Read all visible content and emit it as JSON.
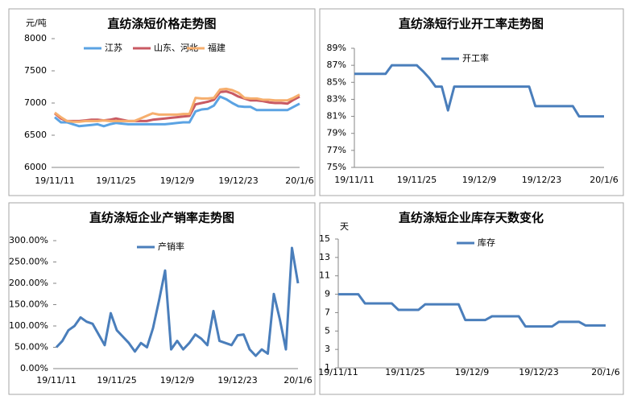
{
  "chart_data": [
    {
      "type": "line",
      "title": "直纺涤短价格走势图",
      "y_label": "元/吨",
      "categories": [
        "19/11/11",
        null,
        null,
        null,
        null,
        null,
        null,
        null,
        null,
        null,
        "19/11/25",
        null,
        null,
        null,
        null,
        null,
        null,
        null,
        null,
        null,
        "19/12/9",
        null,
        null,
        null,
        null,
        null,
        null,
        null,
        null,
        null,
        "19/12/23",
        null,
        null,
        null,
        null,
        null,
        null,
        null,
        null,
        null,
        "20/1/6"
      ],
      "ylim": [
        6000,
        8000
      ],
      "yticks": [
        6000,
        6500,
        7000,
        7500,
        8000
      ],
      "grid": false,
      "series": [
        {
          "name": "江苏",
          "color": "#5ba3e3",
          "values": [
            6780,
            6700,
            6700,
            6670,
            6640,
            6650,
            6660,
            6670,
            6640,
            6670,
            6690,
            6680,
            6670,
            6670,
            6670,
            6670,
            6670,
            6670,
            6670,
            6680,
            6690,
            6700,
            6700,
            6870,
            6900,
            6910,
            6960,
            7100,
            7060,
            7000,
            6950,
            6940,
            6940,
            6890,
            6890,
            6890,
            6890,
            6890,
            6890,
            6940,
            6990
          ]
        },
        {
          "name": "山东、河北",
          "color": "#c95a63",
          "values": [
            6840,
            6760,
            6720,
            6720,
            6720,
            6730,
            6740,
            6740,
            6730,
            6740,
            6760,
            6740,
            6720,
            6720,
            6720,
            6720,
            6740,
            6750,
            6760,
            6770,
            6780,
            6790,
            6800,
            6980,
            7000,
            7020,
            7050,
            7170,
            7180,
            7150,
            7100,
            7070,
            7040,
            7040,
            7030,
            7010,
            7000,
            7000,
            6990,
            7050,
            7100
          ]
        },
        {
          "name": "福建",
          "color": "#f6ae6d",
          "values": [
            6850,
            6780,
            6720,
            6710,
            6710,
            6720,
            6720,
            6720,
            6730,
            6720,
            6720,
            6720,
            6720,
            6720,
            6760,
            6800,
            6840,
            6820,
            6820,
            6820,
            6820,
            6830,
            6830,
            7080,
            7070,
            7070,
            7080,
            7210,
            7220,
            7200,
            7160,
            7080,
            7070,
            7070,
            7050,
            7050,
            7040,
            7040,
            7040,
            7080,
            7130
          ]
        }
      ]
    },
    {
      "type": "line",
      "title": "直纺涤短行业开工率走势图",
      "categories": [
        "19/11/11",
        null,
        null,
        null,
        null,
        null,
        null,
        null,
        null,
        null,
        "19/11/25",
        null,
        null,
        null,
        null,
        null,
        null,
        null,
        null,
        null,
        "19/12/9",
        null,
        null,
        null,
        null,
        null,
        null,
        null,
        null,
        null,
        "19/12/23",
        null,
        null,
        null,
        null,
        null,
        null,
        null,
        null,
        null,
        "20/1/6"
      ],
      "ylim": [
        75,
        89
      ],
      "yticks": [
        {
          "value": 75,
          "label": "75%"
        },
        {
          "value": 77,
          "label": "77%"
        },
        {
          "value": 79,
          "label": "79%"
        },
        {
          "value": 81,
          "label": "81%"
        },
        {
          "value": 83,
          "label": "83%"
        },
        {
          "value": 85,
          "label": "85%"
        },
        {
          "value": 87,
          "label": "87%"
        },
        {
          "value": 89,
          "label": "89%"
        }
      ],
      "grid": false,
      "series": [
        {
          "name": "开工率",
          "color": "#4a7ebb",
          "values": [
            86,
            86,
            86,
            86,
            86,
            86,
            87,
            87,
            87,
            87,
            87,
            86.3,
            85.5,
            84.5,
            84.5,
            81.7,
            84.5,
            84.5,
            84.5,
            84.5,
            84.5,
            84.5,
            84.5,
            84.5,
            84.5,
            84.5,
            84.5,
            84.5,
            84.5,
            82.2,
            82.2,
            82.2,
            82.2,
            82.2,
            82.2,
            82.2,
            81,
            81,
            81,
            81,
            81
          ]
        }
      ]
    },
    {
      "type": "line",
      "title": "直纺涤短企业产销率走势图",
      "categories": [
        "19/11/11",
        null,
        null,
        null,
        null,
        null,
        null,
        null,
        null,
        null,
        "19/11/25",
        null,
        null,
        null,
        null,
        null,
        null,
        null,
        null,
        null,
        "19/12/9",
        null,
        null,
        null,
        null,
        null,
        null,
        null,
        null,
        null,
        "19/12/23",
        null,
        null,
        null,
        null,
        null,
        null,
        null,
        null,
        null,
        "20/1/6"
      ],
      "ylim": [
        0,
        300
      ],
      "yticks": [
        {
          "value": 0,
          "label": "0.00%"
        },
        {
          "value": 50,
          "label": "50.00%"
        },
        {
          "value": 100,
          "label": "100.00%"
        },
        {
          "value": 150,
          "label": "150.00%"
        },
        {
          "value": 200,
          "label": "200.00%"
        },
        {
          "value": 250,
          "label": "250.00%"
        },
        {
          "value": 300,
          "label": "300.00%"
        }
      ],
      "grid": false,
      "series": [
        {
          "name": "产销率",
          "color": "#4a7ebb",
          "values": [
            50,
            65,
            90,
            100,
            120,
            110,
            105,
            80,
            55,
            130,
            90,
            75,
            60,
            40,
            60,
            50,
            95,
            160,
            230,
            45,
            65,
            45,
            60,
            80,
            70,
            55,
            135,
            65,
            60,
            55,
            78,
            80,
            45,
            30,
            45,
            35,
            175,
            115,
            45,
            283,
            200
          ]
        }
      ]
    },
    {
      "type": "line",
      "title": "直纺涤短企业库存天数变化",
      "y_label": "天",
      "categories": [
        "19/11/11",
        null,
        null,
        null,
        null,
        null,
        null,
        null,
        null,
        null,
        "19/11/25",
        null,
        null,
        null,
        null,
        null,
        null,
        null,
        null,
        null,
        "19/12/9",
        null,
        null,
        null,
        null,
        null,
        null,
        null,
        null,
        null,
        "19/12/23",
        null,
        null,
        null,
        null,
        null,
        null,
        null,
        null,
        null,
        "20/1/6"
      ],
      "ylim": [
        1,
        15
      ],
      "yticks": [
        1,
        3,
        5,
        7,
        9,
        11,
        13,
        15
      ],
      "grid": false,
      "series": [
        {
          "name": "库存",
          "color": "#4a7ebb",
          "values": [
            9,
            9,
            9,
            9,
            8,
            8,
            8,
            8,
            8,
            7.3,
            7.3,
            7.3,
            7.3,
            7.9,
            7.9,
            7.9,
            7.9,
            7.9,
            7.9,
            6.2,
            6.2,
            6.2,
            6.2,
            6.6,
            6.6,
            6.6,
            6.6,
            6.6,
            5.5,
            5.5,
            5.5,
            5.5,
            5.5,
            6,
            6,
            6,
            6,
            5.6,
            5.6,
            5.6,
            5.6
          ]
        }
      ]
    }
  ]
}
